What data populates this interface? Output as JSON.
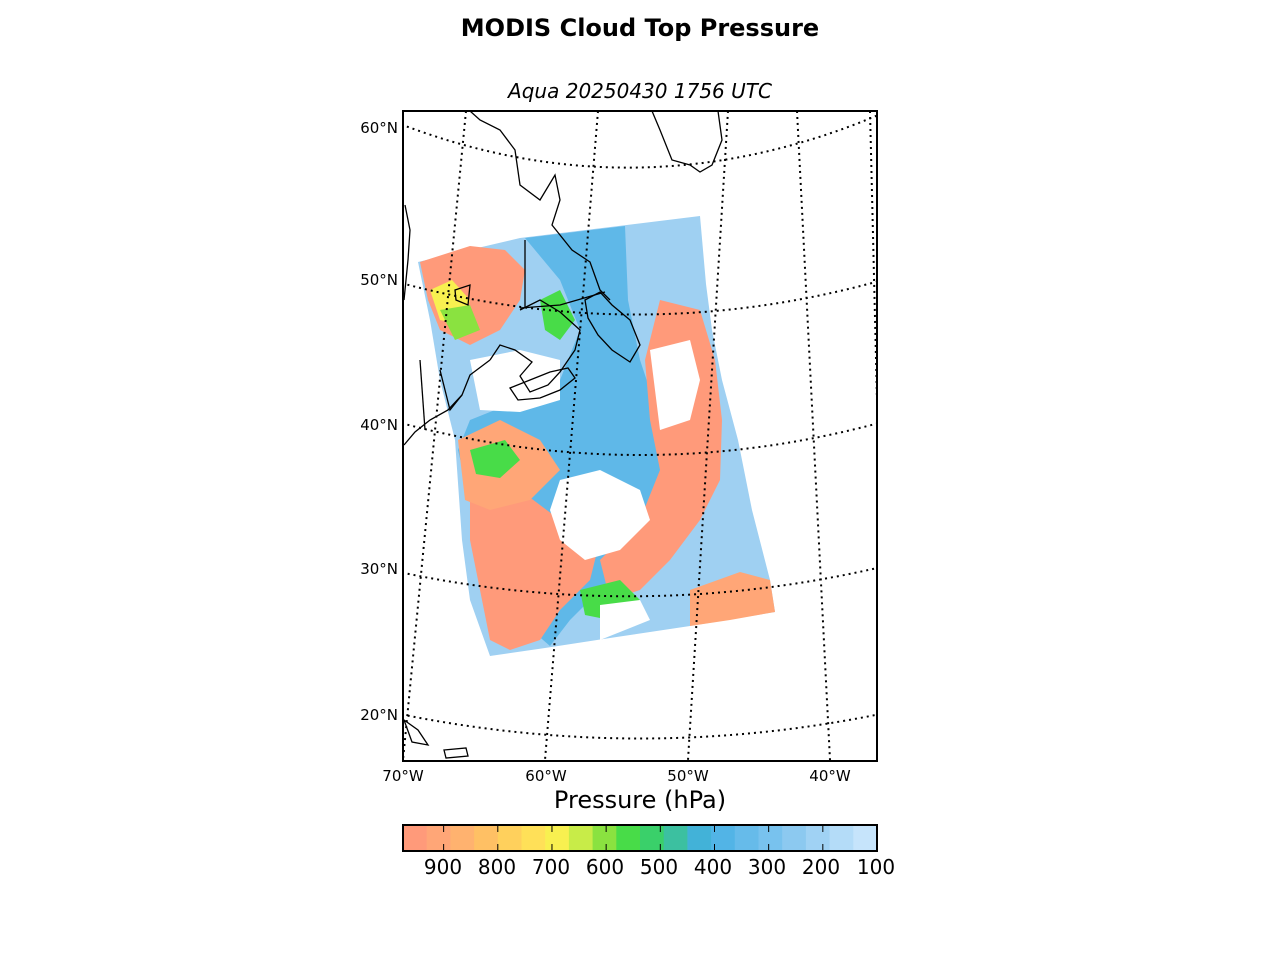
{
  "figure": {
    "title": "MODIS Cloud Top Pressure",
    "subtitle": "Aqua 20250430 1756 UTC"
  },
  "map": {
    "latitude_labels": [
      "60°N",
      "50°N",
      "40°N",
      "30°N",
      "20°N"
    ],
    "longitude_labels": [
      "70°W",
      "60°W",
      "50°W",
      "40°W"
    ],
    "graticule_style": "dotted",
    "coastline_color": "#000000",
    "no_data_color": "#ffffff"
  },
  "colorbar": {
    "title": "Pressure (hPa)",
    "tick_labels": [
      "900",
      "800",
      "700",
      "600",
      "500",
      "400",
      "300",
      "200",
      "100"
    ],
    "range_hPa": [
      975,
      100
    ],
    "colors": [
      "#ff9a7a",
      "#ffa677",
      "#ffb26f",
      "#ffc064",
      "#ffd05c",
      "#ffe058",
      "#f8f050",
      "#c8ec48",
      "#8ae240",
      "#48dc48",
      "#3ad06a",
      "#3cc0a0",
      "#42b2d8",
      "#52b4e6",
      "#66bbea",
      "#78c2ee",
      "#8cc9f0",
      "#a0d2f4",
      "#b4dcf8",
      "#c6e4fb"
    ]
  }
}
